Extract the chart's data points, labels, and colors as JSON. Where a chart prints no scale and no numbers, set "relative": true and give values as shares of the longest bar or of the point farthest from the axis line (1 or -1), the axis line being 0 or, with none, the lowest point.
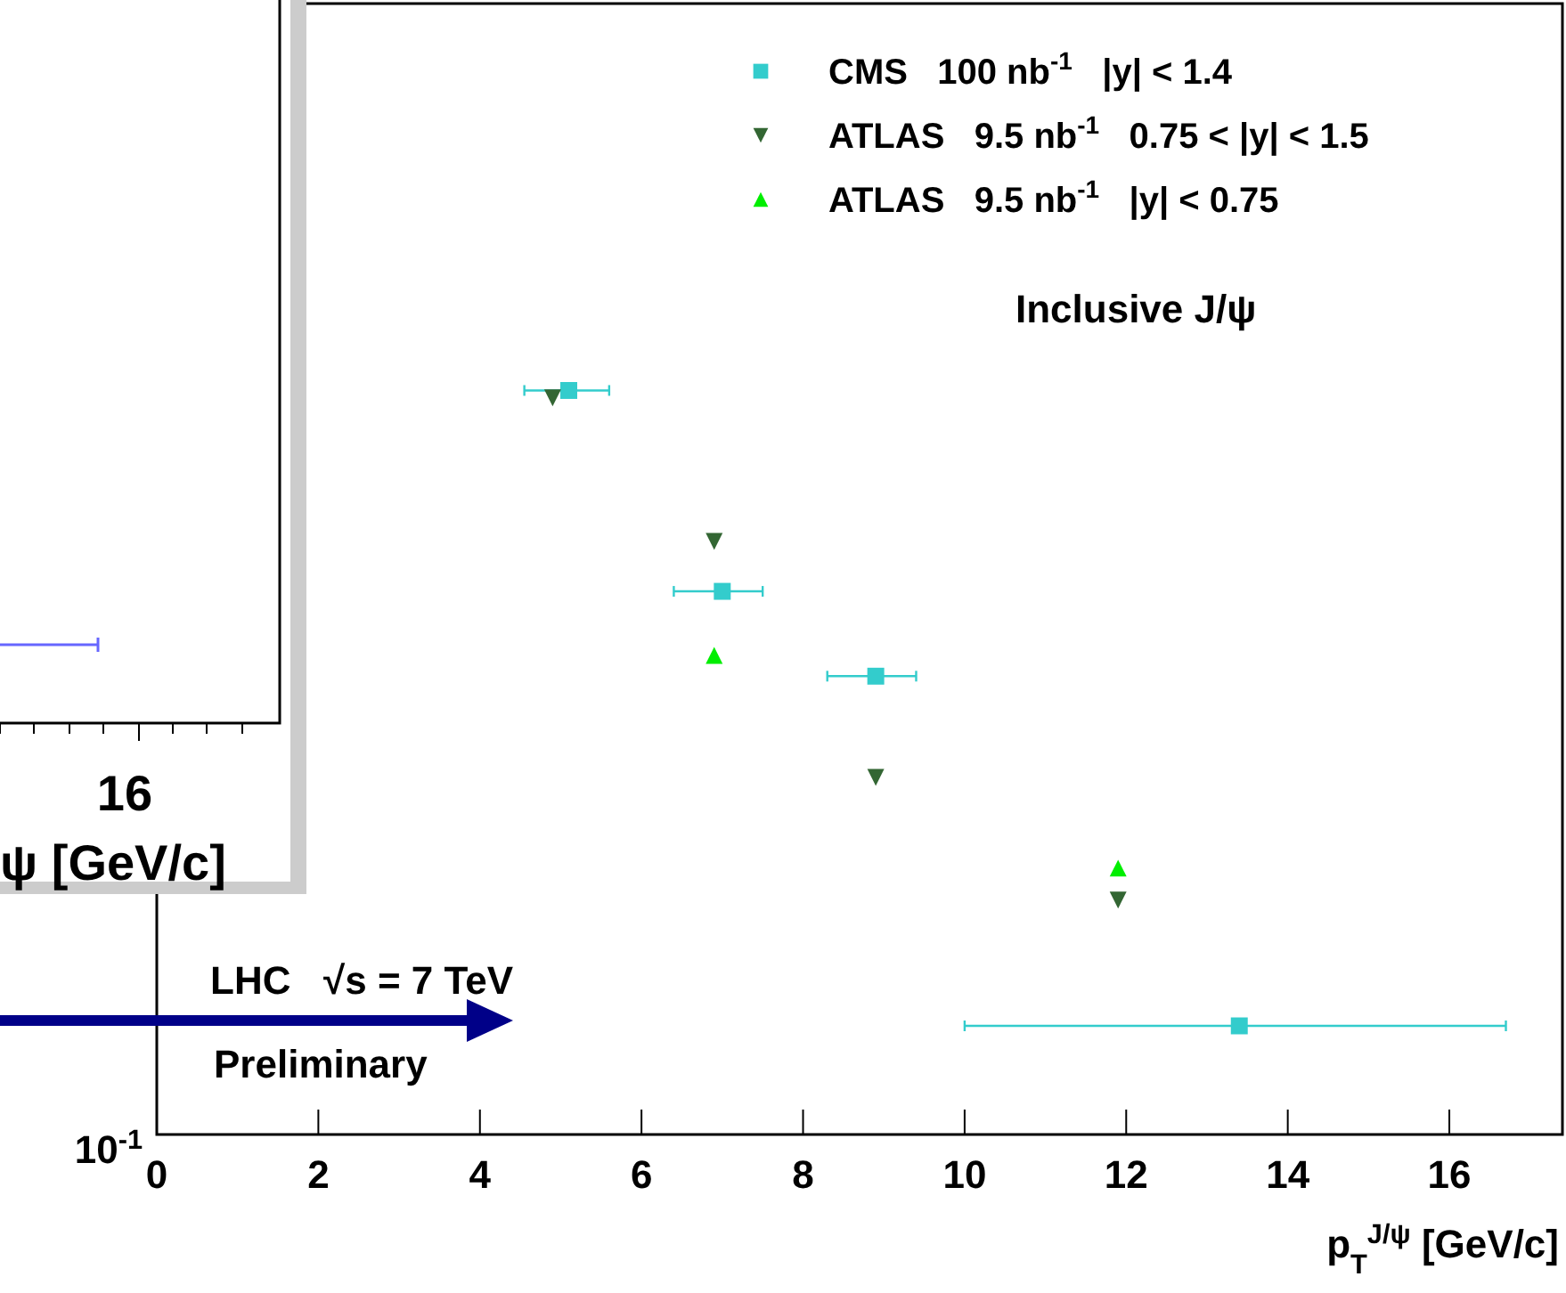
{
  "chart_data": {
    "type": "scatter",
    "relative": true,
    "xlabel": "p$_{T}$$^{J/ψ}$ [GeV/c]",
    "xlim": [
      0,
      17.4
    ],
    "xticks": [
      0,
      2,
      4,
      6,
      8,
      10,
      12,
      14,
      16
    ],
    "legend": "top right",
    "series": [
      {
        "name": "CMS   100 nb$^{-1}$   |y| < 1.4",
        "color": "#33cccc",
        "marker": "square",
        "x": [
          5.1,
          7.0,
          8.9,
          13.4
        ],
        "values": [
          1,
          0.73,
          0.616,
          0.146
        ],
        "xerrors": [
          [
            4.55,
            5.6
          ],
          [
            6.4,
            7.5
          ],
          [
            8.3,
            9.4
          ],
          [
            10.0,
            16.7
          ]
        ]
      },
      {
        "name": "ATLAS   9.5 nb$^{-1}$   0.75 < |y| < 1.5",
        "color": "#336633",
        "marker": "triangle-down",
        "x": [
          4.9,
          6.9,
          8.9,
          11.9
        ],
        "values": [
          0.99,
          0.797,
          0.48,
          0.315
        ]
      },
      {
        "name": "ATLAS   9.5 nb$^{-1}$   |y| < 0.75",
        "color": "#00ee00",
        "marker": "triangle",
        "x": [
          6.9,
          11.9
        ],
        "values": [
          0.644,
          0.358
        ]
      }
    ],
    "annotations": [
      "Inclusive J/ψ",
      "LHC   √s = 7 TeV",
      "Preliminary",
      "10$^{-1}$",
      "16",
      "ψ [GeV/c]"
    ]
  }
}
